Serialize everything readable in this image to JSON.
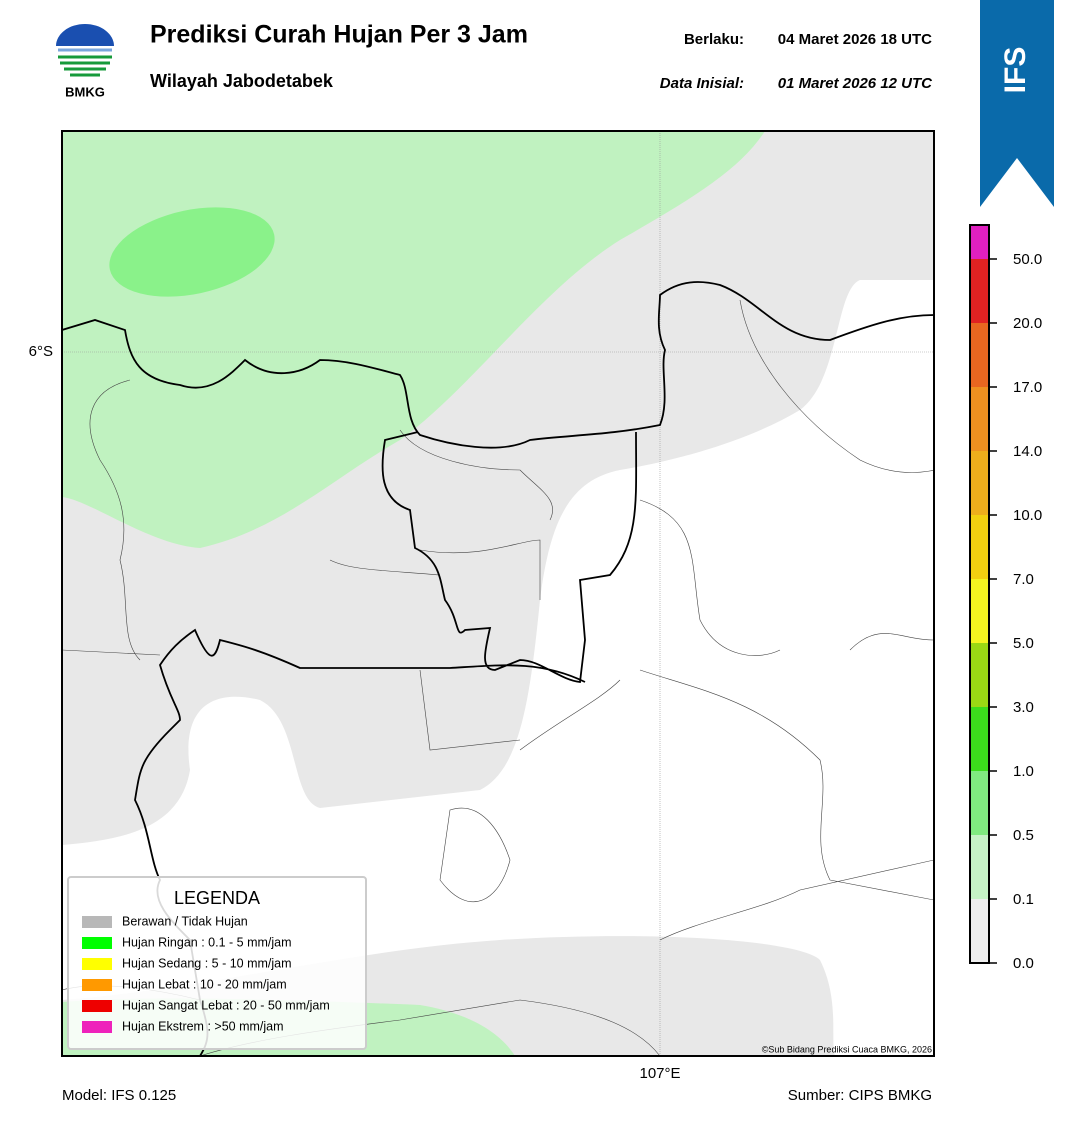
{
  "header": {
    "logo_text": "BMKG",
    "title": "Prediksi Curah Hujan Per 3 Jam",
    "subtitle": "Wilayah Jabodetabek",
    "valid_label": "Berlaku:",
    "valid_time": "04 Maret 2026 18 UTC",
    "init_label": "Data Inisial:",
    "init_time": "01 Maret 2026 12 UTC"
  },
  "badge": "IFS",
  "map": {
    "lat_label": "6°S",
    "lon_label": "107°E",
    "credit": "©Sub Bidang Prediksi Cuaca BMKG, 2026"
  },
  "legend": {
    "title": "LEGENDA",
    "items": [
      {
        "label": "Berawan / Tidak Hujan",
        "color": "#b8b8b8"
      },
      {
        "label": "Hujan Ringan : 0.1 - 5 mm/jam",
        "color": "#00ff00"
      },
      {
        "label": "Hujan Sedang : 5 - 10 mm/jam",
        "color": "#ffff00"
      },
      {
        "label": "Hujan Lebat : 10 - 20 mm/jam",
        "color": "#ff9900"
      },
      {
        "label": "Hujan Sangat Lebat : 20 - 50 mm/jam",
        "color": "#ee0000"
      },
      {
        "label": "Hujan Ekstrem : >50 mm/jam",
        "color": "#ee22bb"
      }
    ]
  },
  "colorbar": {
    "ticks": [
      "0.0",
      "0.1",
      "0.5",
      "1.0",
      "3.0",
      "5.0",
      "7.0",
      "10.0",
      "14.0",
      "17.0",
      "20.0",
      "50.0"
    ],
    "colors": [
      "#eeeeee",
      "#c6f2c6",
      "#80ea80",
      "#3cdc1c",
      "#9ad814",
      "#f4f420",
      "#f2d010",
      "#eeae1c",
      "#ee9020",
      "#e86620",
      "#e02222",
      "#e020c0"
    ]
  },
  "footer": {
    "model": "Model: IFS 0.125",
    "source": "Sumber: CIPS BMKG"
  }
}
